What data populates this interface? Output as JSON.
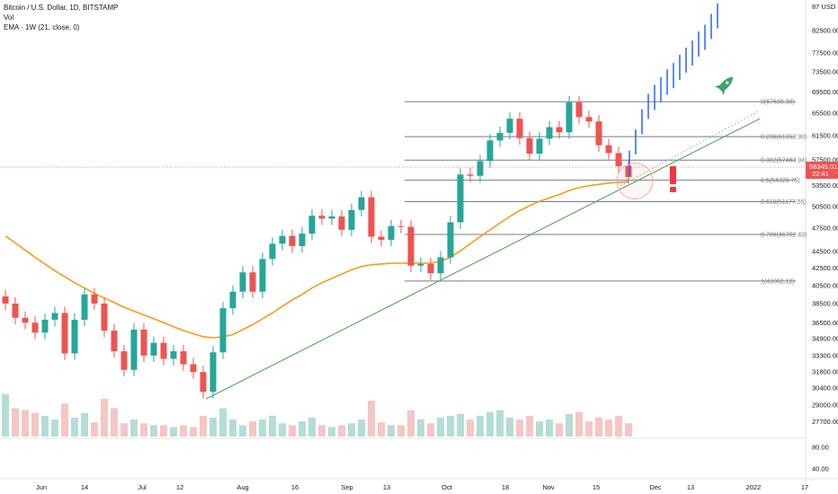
{
  "header": {
    "title": "Bitcoin / U.S. Dollar, 1D, BITSTAMP",
    "vol_label": "Vol",
    "ema_label": "EMA · 1W (21, close, 0)"
  },
  "price_axis": {
    "currency": "USD",
    "top_value": "87",
    "top_suffix": "30",
    "ticks": [
      "82500.00",
      "77500.00",
      "73500.00",
      "69500.00",
      "65500.00",
      "61500.00",
      "57500.00",
      "53500.00",
      "50500.00",
      "47500.00",
      "44500.00",
      "42500.00",
      "40500.00",
      "38500.00",
      "36500.00",
      "34900.00",
      "33300.00",
      "31800.00",
      "30400.00",
      "29000.00",
      "27700.00"
    ],
    "last_price": "56345.01",
    "countdown": "22:41"
  },
  "volume_axis": {
    "ticks": [
      "80.00",
      "40.00"
    ]
  },
  "time_axis": {
    "labels": [
      "Jun",
      "14",
      "Jul",
      "12",
      "Aug",
      "16",
      "Sep",
      "13",
      "Oct",
      "18",
      "Nov",
      "15",
      "Dec",
      "13",
      "2022",
      "17"
    ]
  },
  "fib_levels": [
    {
      "label": "0(67639.38)"
    },
    {
      "label": "0.236(61352.98)"
    },
    {
      "label": "0.382(57463.94)"
    },
    {
      "label": "0.5(54320.75)"
    },
    {
      "label": "0.618(51177.55)"
    },
    {
      "label": "0.786(46702.49)"
    },
    {
      "label": "1(41002.12)"
    }
  ],
  "colors": {
    "up": "#26a69a",
    "down": "#ef5350",
    "ema": "#f59b1c",
    "trendline": "#43a047",
    "fib": "#787b86",
    "projection": "#2962ff",
    "price_tag": "#ef5350",
    "vol_up": "#b4ddd5",
    "vol_down": "#f5c6c4",
    "rocket": "#3da56a",
    "exclaim": "#f23645"
  },
  "icons": {
    "rocket": "rocket-icon",
    "exclaim": "exclamation-icon"
  },
  "chart_data": {
    "type": "candlestick",
    "title": "Bitcoin / U.S. Dollar, 1D, BITSTAMP",
    "indicator": "EMA 1W (21, close, 0)",
    "yscale": "log",
    "ylim": [
      26500,
      87000
    ],
    "x": [
      "2021-05-21",
      "2021-05-24",
      "2021-05-27",
      "2021-05-30",
      "2021-06-02",
      "2021-06-05",
      "2021-06-08",
      "2021-06-11",
      "2021-06-14",
      "2021-06-17",
      "2021-06-20",
      "2021-06-23",
      "2021-06-26",
      "2021-06-29",
      "2021-07-02",
      "2021-07-05",
      "2021-07-08",
      "2021-07-11",
      "2021-07-14",
      "2021-07-17",
      "2021-07-20",
      "2021-07-23",
      "2021-07-26",
      "2021-07-29",
      "2021-08-01",
      "2021-08-04",
      "2021-08-07",
      "2021-08-10",
      "2021-08-13",
      "2021-08-16",
      "2021-08-19",
      "2021-08-22",
      "2021-08-25",
      "2021-08-28",
      "2021-08-31",
      "2021-09-03",
      "2021-09-06",
      "2021-09-09",
      "2021-09-12",
      "2021-09-15",
      "2021-09-18",
      "2021-09-21",
      "2021-09-24",
      "2021-09-27",
      "2021-09-30",
      "2021-10-03",
      "2021-10-06",
      "2021-10-09",
      "2021-10-12",
      "2021-10-15",
      "2021-10-18",
      "2021-10-21",
      "2021-10-24",
      "2021-10-27",
      "2021-10-30",
      "2021-11-02",
      "2021-11-05",
      "2021-11-08",
      "2021-11-11",
      "2021-11-14",
      "2021-11-17",
      "2021-11-20",
      "2021-11-23",
      "2021-11-26"
    ],
    "close": [
      38500,
      37000,
      36500,
      35500,
      36800,
      37500,
      33500,
      36800,
      39500,
      38500,
      35700,
      33700,
      32000,
      35800,
      33300,
      34500,
      33000,
      33700,
      32500,
      31800,
      30100,
      33600,
      38000,
      39800,
      42000,
      39800,
      43600,
      45500,
      46500,
      45200,
      46800,
      49200,
      48800,
      49100,
      47300,
      50000,
      51800,
      46400,
      46000,
      47800,
      47700,
      42800,
      43000,
      41900,
      43800,
      48300,
      55200,
      55000,
      57300,
      60700,
      62000,
      64500,
      61100,
      58500,
      61000,
      63000,
      62100,
      67500,
      64800,
      64000,
      59900,
      58600,
      56500,
      54800
    ],
    "ema": [
      46500,
      45600,
      44700,
      43800,
      43000,
      42200,
      41500,
      40800,
      40200,
      39600,
      39100,
      38600,
      38100,
      37700,
      37300,
      36900,
      36500,
      36100,
      35700,
      35400,
      35100,
      35000,
      35100,
      35300,
      35800,
      36300,
      36900,
      37500,
      38200,
      38900,
      39500,
      40200,
      40800,
      41300,
      41800,
      42300,
      42700,
      42900,
      43000,
      43100,
      43100,
      43100,
      43100,
      43100,
      43300,
      43800,
      44600,
      45500,
      46400,
      47300,
      48200,
      49100,
      49900,
      50600,
      51200,
      51700,
      52200,
      52800,
      53200,
      53500,
      53700,
      53900,
      54000,
      54100
    ],
    "volume": [
      45,
      30,
      28,
      25,
      22,
      18,
      35,
      20,
      25,
      15,
      40,
      30,
      14,
      18,
      14,
      12,
      12,
      10,
      12,
      10,
      22,
      20,
      30,
      18,
      12,
      16,
      18,
      22,
      14,
      12,
      16,
      20,
      12,
      10,
      12,
      14,
      18,
      38,
      15,
      12,
      12,
      28,
      18,
      14,
      20,
      22,
      24,
      18,
      22,
      26,
      28,
      20,
      18,
      22,
      16,
      18,
      14,
      24,
      26,
      16,
      20,
      18,
      22,
      14
    ],
    "projection": [
      57000,
      60500,
      64000,
      66800,
      68500,
      70000,
      71500,
      72800,
      74500,
      76000,
      77500,
      79500,
      81000,
      83500,
      86000
    ],
    "fibonacci": {
      "high": 67639.38,
      "low": 41002.12,
      "levels": [
        0,
        0.236,
        0.382,
        0.5,
        0.618,
        0.786,
        1
      ],
      "prices": [
        67639.38,
        61352.98,
        57463.94,
        54320.75,
        51177.55,
        46702.49,
        41002.12
      ]
    },
    "trendline": {
      "from": [
        "2021-07-20",
        29500
      ],
      "to": [
        "2021-12-31",
        65500
      ]
    },
    "last_price": 56345.01,
    "volume_scale_ticks": [
      80,
      40
    ]
  }
}
